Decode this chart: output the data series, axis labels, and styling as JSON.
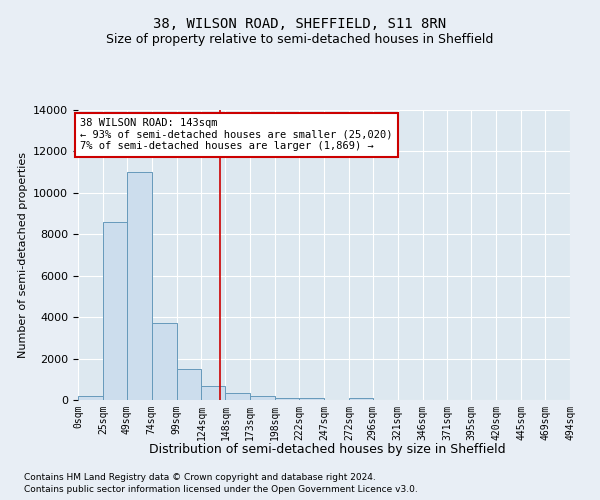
{
  "title": "38, WILSON ROAD, SHEFFIELD, S11 8RN",
  "subtitle": "Size of property relative to semi-detached houses in Sheffield",
  "xlabel": "Distribution of semi-detached houses by size in Sheffield",
  "ylabel": "Number of semi-detached properties",
  "property_size": 143,
  "annotation_title": "38 WILSON ROAD: 143sqm",
  "annotation_line1": "← 93% of semi-detached houses are smaller (25,020)",
  "annotation_line2": "7% of semi-detached houses are larger (1,869) →",
  "footnote1": "Contains HM Land Registry data © Crown copyright and database right 2024.",
  "footnote2": "Contains public sector information licensed under the Open Government Licence v3.0.",
  "bin_edges": [
    0,
    25,
    49,
    74,
    99,
    124,
    148,
    173,
    198,
    222,
    247,
    272,
    296,
    321,
    346,
    371,
    395,
    420,
    445,
    469,
    494
  ],
  "bin_labels": [
    "0sqm",
    "25sqm",
    "49sqm",
    "74sqm",
    "99sqm",
    "124sqm",
    "148sqm",
    "173sqm",
    "198sqm",
    "222sqm",
    "247sqm",
    "272sqm",
    "296sqm",
    "321sqm",
    "346sqm",
    "371sqm",
    "395sqm",
    "420sqm",
    "445sqm",
    "469sqm",
    "494sqm"
  ],
  "counts": [
    200,
    8600,
    11000,
    3700,
    1500,
    700,
    350,
    200,
    120,
    100,
    0,
    100,
    0,
    0,
    0,
    0,
    0,
    0,
    0,
    0
  ],
  "bar_color": "#ccdded",
  "bar_edge_color": "#6699bb",
  "vline_color": "#cc0000",
  "vline_x": 143,
  "ylim": [
    0,
    14000
  ],
  "yticks": [
    0,
    2000,
    4000,
    6000,
    8000,
    10000,
    12000,
    14000
  ],
  "background_color": "#e8eef5",
  "plot_background": "#dde8f0",
  "grid_color": "#ffffff",
  "title_fontsize": 10,
  "subtitle_fontsize": 9,
  "annotation_box_color": "#ffffff",
  "annotation_box_edge": "#cc0000"
}
